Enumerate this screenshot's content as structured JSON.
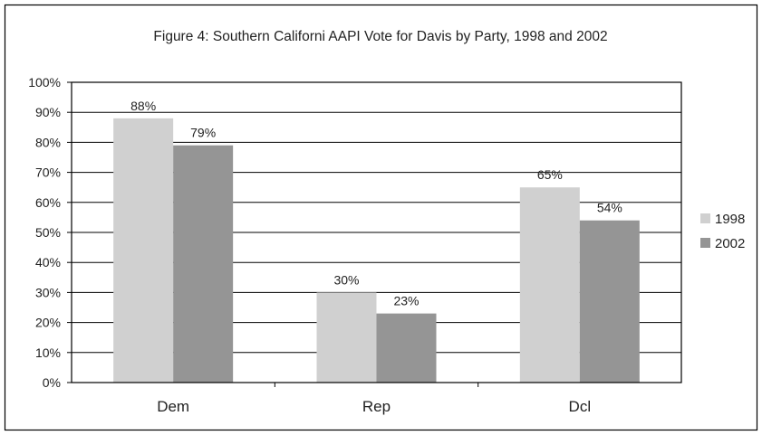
{
  "chart_data": {
    "type": "bar",
    "title": "Figure 4:  Southern Californi AAPI Vote for Davis by Party, 1998 and 2002",
    "xlabel": "",
    "ylabel": "",
    "categories": [
      "Dem",
      "Rep",
      "Dcl"
    ],
    "series": [
      {
        "name": "1998",
        "values": [
          88,
          30,
          65
        ],
        "color": "#d0d0d0"
      },
      {
        "name": "2002",
        "values": [
          79,
          23,
          54
        ],
        "color": "#959595"
      }
    ],
    "data_labels": [
      [
        "88%",
        "30%",
        "65%"
      ],
      [
        "79%",
        "23%",
        "54%"
      ]
    ],
    "ylim": [
      0,
      100
    ],
    "y_ticks": [
      0,
      10,
      20,
      30,
      40,
      50,
      60,
      70,
      80,
      90,
      100
    ],
    "y_tick_labels": [
      "0%",
      "10%",
      "20%",
      "30%",
      "40%",
      "50%",
      "60%",
      "70%",
      "80%",
      "90%",
      "100%"
    ],
    "grid": true,
    "legend_position": "right",
    "colors": {
      "frame": "#000000",
      "grid": "#000000",
      "text": "#222222"
    }
  }
}
